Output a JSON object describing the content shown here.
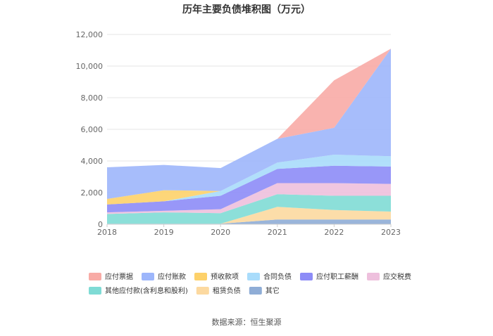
{
  "chart_data": {
    "type": "area",
    "stacked": true,
    "title": "历年主要负债堆积图（万元）",
    "source": "数据来源：恒生聚源",
    "x": [
      "2018",
      "2019",
      "2020",
      "2021",
      "2022",
      "2023"
    ],
    "ylim": [
      0,
      12000
    ],
    "yticks": [
      0,
      2000,
      4000,
      6000,
      8000,
      10000,
      12000
    ],
    "ytick_labels": [
      "0",
      "2,000",
      "4,000",
      "6,000",
      "8,000",
      "10,000",
      "12,000"
    ],
    "grid": true,
    "legend_position": "bottom",
    "series": [
      {
        "name": "其它",
        "color": "#8fadd6",
        "values": [
          30,
          30,
          30,
          300,
          300,
          300
        ]
      },
      {
        "name": "租赁负债",
        "color": "#fcd9a0",
        "values": [
          0,
          0,
          0,
          800,
          600,
          500
        ]
      },
      {
        "name": "其他应付款(含利息和股利)",
        "color": "#7fdbd5",
        "values": [
          620,
          720,
          670,
          800,
          900,
          1000
        ]
      },
      {
        "name": "应交税费",
        "color": "#eec0dd",
        "values": [
          100,
          100,
          250,
          700,
          800,
          750
        ]
      },
      {
        "name": "应付职工薪酬",
        "color": "#8d8cf7",
        "values": [
          500,
          600,
          850,
          900,
          1100,
          1100
        ]
      },
      {
        "name": "合同负债",
        "color": "#a9dcfb",
        "values": [
          0,
          0,
          300,
          400,
          700,
          650
        ]
      },
      {
        "name": "预收款项",
        "color": "#fdd16a",
        "values": [
          350,
          700,
          0,
          0,
          0,
          0
        ]
      },
      {
        "name": "应付账款",
        "color": "#9db6fb",
        "values": [
          2000,
          1600,
          1450,
          1500,
          1700,
          6800
        ]
      },
      {
        "name": "应付票据",
        "color": "#f8aba6",
        "values": [
          0,
          0,
          0,
          0,
          3000,
          0
        ]
      }
    ],
    "legend_order": [
      "应付票据",
      "应付账款",
      "预收款项",
      "合同负债",
      "应付职工薪酬",
      "应交税费",
      "其他应付款(含利息和股利)",
      "租赁负债",
      "其它"
    ]
  }
}
